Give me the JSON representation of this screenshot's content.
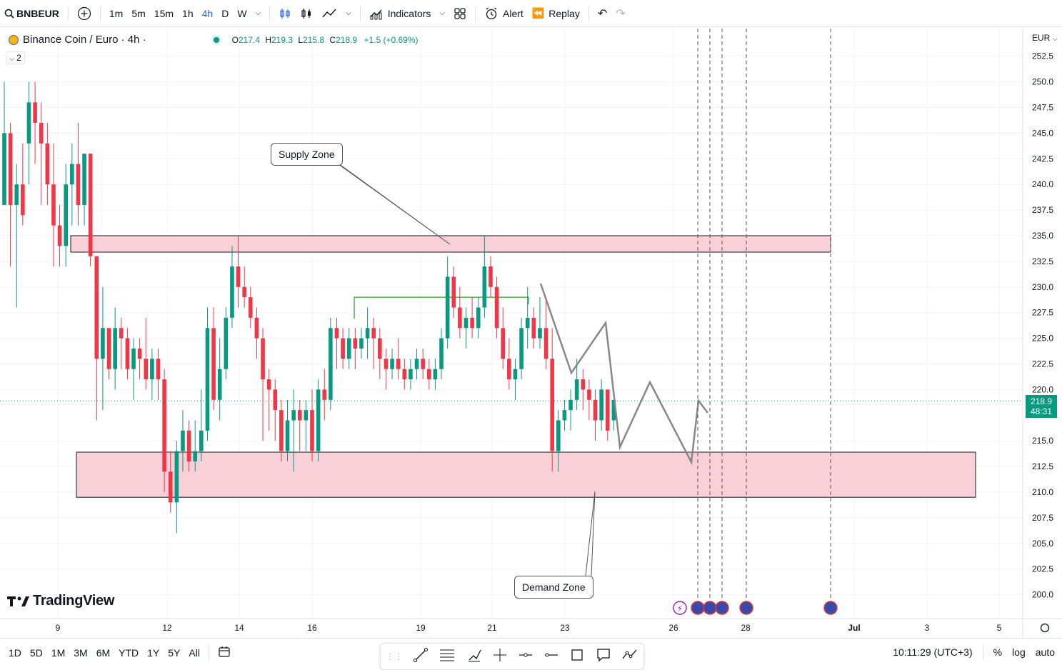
{
  "toolbar": {
    "symbol": "BNBEUR",
    "timeframes": [
      "1m",
      "5m",
      "15m",
      "1h",
      "4h",
      "D",
      "W"
    ],
    "active_timeframe": "4h",
    "indicators_label": "Indicators",
    "alert_label": "Alert",
    "replay_label": "Replay"
  },
  "legend": {
    "title": "Binance Coin / Euro · 4h ·",
    "o_key": "O",
    "o": "217.4",
    "h_key": "H",
    "h": "219.3",
    "l_key": "L",
    "l": "215.8",
    "c_key": "C",
    "c": "218.9",
    "change": "+1.5 (+0.69%)",
    "collapse_count": "2"
  },
  "axis": {
    "currency": "EUR",
    "price_ticks": [
      "252.5",
      "250.0",
      "247.5",
      "245.0",
      "242.5",
      "240.0",
      "237.5",
      "235.0",
      "232.5",
      "230.0",
      "227.5",
      "225.0",
      "222.5",
      "220.0",
      "215.0",
      "212.5",
      "210.0",
      "207.5",
      "205.0",
      "202.5",
      "200.0"
    ],
    "time_ticks": [
      "9",
      "12",
      "14",
      "16",
      "19",
      "21",
      "23",
      "26",
      "28",
      "Jul",
      "3",
      "5"
    ],
    "current_price": "218.9",
    "countdown": "48:31"
  },
  "annotations": {
    "supply_label": "Supply Zone",
    "demand_label": "Demand Zone"
  },
  "bottom": {
    "ranges": [
      "1D",
      "5D",
      "1M",
      "3M",
      "6M",
      "YTD",
      "1Y",
      "5Y",
      "All"
    ],
    "clock": "10:11:29 (UTC+3)",
    "percent": "%",
    "log": "log",
    "auto": "auto"
  },
  "colors": {
    "up": "#089981",
    "down": "#f23645",
    "zone_fill": "#f8c8d0",
    "accent": "#2962ff"
  },
  "chart_data": {
    "type": "candlestick",
    "ylim": [
      199,
      254
    ],
    "supply_zone": [
      233.4,
      235.0
    ],
    "demand_zone": [
      209.5,
      213.9
    ],
    "resistance_line": 229.0,
    "candles": [
      [
        0,
        238,
        250,
        238,
        245
      ],
      [
        1,
        245,
        246,
        232,
        238
      ],
      [
        2,
        238,
        242,
        228,
        240
      ],
      [
        3,
        240,
        244,
        236,
        237
      ],
      [
        4,
        244,
        250,
        240,
        248
      ],
      [
        5,
        248,
        250,
        242,
        246
      ],
      [
        6,
        246,
        248,
        238,
        244
      ],
      [
        7,
        244,
        246,
        238,
        240
      ],
      [
        8,
        240,
        244,
        232,
        236
      ],
      [
        9,
        236,
        238,
        232,
        234
      ],
      [
        10,
        234,
        242,
        232,
        240
      ],
      [
        11,
        240,
        244,
        236,
        242
      ],
      [
        12,
        242,
        246,
        236,
        238
      ],
      [
        13,
        238,
        243,
        236,
        243
      ],
      [
        14,
        243,
        243,
        232,
        233
      ],
      [
        15,
        233,
        233,
        217,
        223
      ],
      [
        16,
        223,
        230,
        218,
        226
      ],
      [
        17,
        226,
        226,
        221,
        222
      ],
      [
        18,
        222,
        228,
        220,
        226
      ],
      [
        19,
        226,
        227,
        222,
        225
      ],
      [
        20,
        225,
        226,
        221,
        222
      ],
      [
        21,
        222,
        225,
        219,
        224
      ],
      [
        22,
        224,
        225,
        221,
        223
      ],
      [
        23,
        223,
        227,
        220,
        221
      ],
      [
        24,
        221,
        224,
        219,
        223
      ],
      [
        25,
        223,
        224,
        219,
        221
      ],
      [
        26,
        221,
        222,
        210,
        212
      ],
      [
        27,
        212,
        214,
        208,
        209
      ],
      [
        28,
        209,
        215,
        206,
        214
      ],
      [
        29,
        214,
        218,
        212,
        216
      ],
      [
        30,
        216,
        217,
        212,
        213
      ],
      [
        31,
        213,
        217,
        212,
        214
      ],
      [
        32,
        214,
        220,
        213,
        216
      ],
      [
        33,
        216,
        228,
        215,
        226
      ],
      [
        34,
        226,
        228,
        218,
        219
      ],
      [
        35,
        219,
        225,
        217,
        222
      ],
      [
        36,
        222,
        228,
        221,
        227
      ],
      [
        37,
        227,
        234,
        226,
        232
      ],
      [
        38,
        232,
        235,
        228,
        230
      ],
      [
        39,
        230,
        232,
        228,
        229
      ],
      [
        40,
        229,
        230,
        226,
        227
      ],
      [
        41,
        227,
        228,
        223,
        225
      ],
      [
        42,
        225,
        226,
        215,
        221
      ],
      [
        43,
        221,
        222,
        216,
        220
      ],
      [
        44,
        220,
        221,
        215,
        218
      ],
      [
        45,
        218,
        219,
        213,
        214
      ],
      [
        46,
        214,
        219,
        213,
        217
      ],
      [
        47,
        217,
        220,
        212,
        218
      ],
      [
        48,
        218,
        219,
        214,
        217
      ],
      [
        49,
        217,
        219,
        214,
        218
      ],
      [
        50,
        218,
        220,
        213,
        214
      ],
      [
        51,
        214,
        221,
        213,
        220
      ],
      [
        52,
        220,
        222,
        217,
        219
      ],
      [
        53,
        219,
        227,
        218,
        226
      ],
      [
        54,
        226,
        227,
        222,
        225
      ],
      [
        55,
        225,
        226,
        222,
        223
      ],
      [
        56,
        223,
        226,
        222,
        225
      ],
      [
        57,
        225,
        226,
        222,
        224
      ],
      [
        58,
        224,
        226,
        223,
        225
      ],
      [
        59,
        225,
        228,
        223,
        226
      ],
      [
        60,
        226,
        227,
        222,
        225
      ],
      [
        61,
        225,
        226,
        221,
        223
      ],
      [
        62,
        223,
        224,
        220,
        222
      ],
      [
        63,
        222,
        224,
        221,
        223
      ],
      [
        64,
        223,
        225,
        221,
        222
      ],
      [
        65,
        222,
        223,
        220,
        221
      ],
      [
        66,
        221,
        223,
        220,
        222
      ],
      [
        67,
        222,
        224,
        221,
        223
      ],
      [
        68,
        223,
        224,
        221,
        222
      ],
      [
        69,
        222,
        223,
        220,
        221
      ],
      [
        70,
        221,
        223,
        220,
        222
      ],
      [
        71,
        222,
        226,
        221,
        225
      ],
      [
        72,
        225,
        233,
        224,
        231
      ],
      [
        73,
        231,
        232,
        227,
        228
      ],
      [
        74,
        228,
        230,
        225,
        226
      ],
      [
        75,
        226,
        228,
        224,
        227
      ],
      [
        76,
        227,
        229,
        225,
        226
      ],
      [
        77,
        226,
        229,
        225,
        228
      ],
      [
        78,
        228,
        235,
        227,
        232
      ],
      [
        79,
        232,
        233,
        229,
        230
      ],
      [
        80,
        230,
        231,
        225,
        226
      ],
      [
        81,
        226,
        228,
        222,
        223
      ],
      [
        82,
        223,
        225,
        220,
        221
      ],
      [
        83,
        221,
        223,
        219,
        222
      ],
      [
        84,
        222,
        227,
        221,
        226
      ],
      [
        85,
        226,
        230,
        224,
        227
      ],
      [
        86,
        227,
        228,
        224,
        225
      ],
      [
        87,
        225,
        229,
        224,
        226
      ],
      [
        88,
        226,
        229,
        222,
        223
      ],
      [
        89,
        223,
        226,
        212,
        214
      ],
      [
        90,
        214,
        218,
        212,
        217
      ],
      [
        91,
        217,
        219,
        216,
        218
      ],
      [
        92,
        218,
        220,
        216,
        219
      ],
      [
        93,
        219,
        223,
        218,
        221
      ],
      [
        94,
        221,
        222,
        218,
        220
      ],
      [
        95,
        220,
        221,
        217,
        219
      ],
      [
        96,
        219,
        220,
        215,
        217
      ],
      [
        97,
        217,
        221,
        216,
        220
      ],
      [
        98,
        220,
        220,
        215,
        216
      ],
      [
        99,
        217,
        219,
        216,
        219
      ]
    ]
  }
}
